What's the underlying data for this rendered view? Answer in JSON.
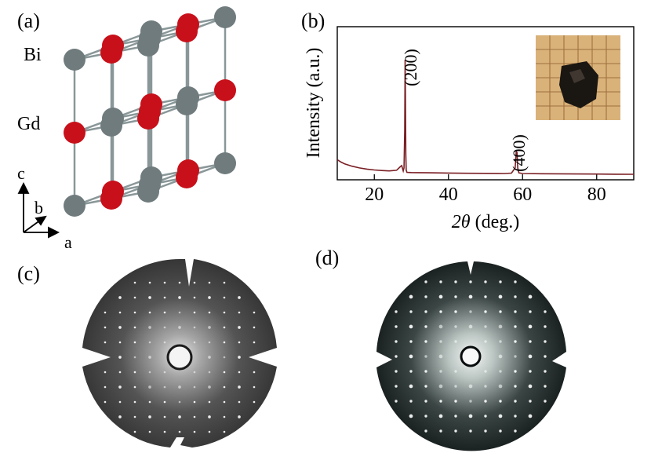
{
  "panels": {
    "a": {
      "label": "(a)",
      "species": [
        {
          "name": "Bi",
          "color": "#6f7b7d"
        },
        {
          "name": "Gd",
          "color": "#c8101a"
        }
      ],
      "axes": {
        "c": "c",
        "b": "b",
        "a": "a"
      }
    },
    "b": {
      "label": "(b)"
    },
    "c": {
      "label": "(c)"
    },
    "d": {
      "label": "(d)"
    }
  },
  "chart_data": {
    "type": "line",
    "xlabel_italic": "2θ",
    "xlabel_rest": " (deg.)",
    "ylabel": "Intensity (a.u.)",
    "xlim": [
      10,
      90
    ],
    "ylim": [
      0,
      100
    ],
    "xticks": [
      20,
      40,
      60,
      80
    ],
    "yticks_shown": false,
    "line_color": "#7a1f24",
    "series": [
      {
        "x": [
          10,
          11,
          12,
          14,
          16,
          18,
          20,
          22,
          24,
          26,
          27,
          27.4,
          27.8,
          28.0,
          28.2,
          28.3,
          28.4,
          28.5,
          28.6,
          28.8,
          29.0,
          30,
          32,
          35,
          40,
          45,
          50,
          55,
          57,
          58,
          58.3,
          58.5,
          58.7,
          59,
          60,
          65,
          70,
          75,
          80,
          85,
          90
        ],
        "y": [
          15,
          13,
          11.5,
          9.5,
          8,
          7,
          6.3,
          5.8,
          5.5,
          6,
          9,
          10,
          5.5,
          8,
          40,
          100,
          70,
          20,
          6,
          4.3,
          4.2,
          4.1,
          4.0,
          3.9,
          3.7,
          3.5,
          3.4,
          3.3,
          3.6,
          8,
          22,
          21,
          8,
          3.8,
          3.3,
          3.1,
          3.0,
          2.9,
          2.8,
          2.7,
          2.6
        ]
      }
    ],
    "annotations": [
      {
        "text": "(200)",
        "x": 28.4
      },
      {
        "text": "(400)",
        "x": 58.5
      }
    ]
  }
}
